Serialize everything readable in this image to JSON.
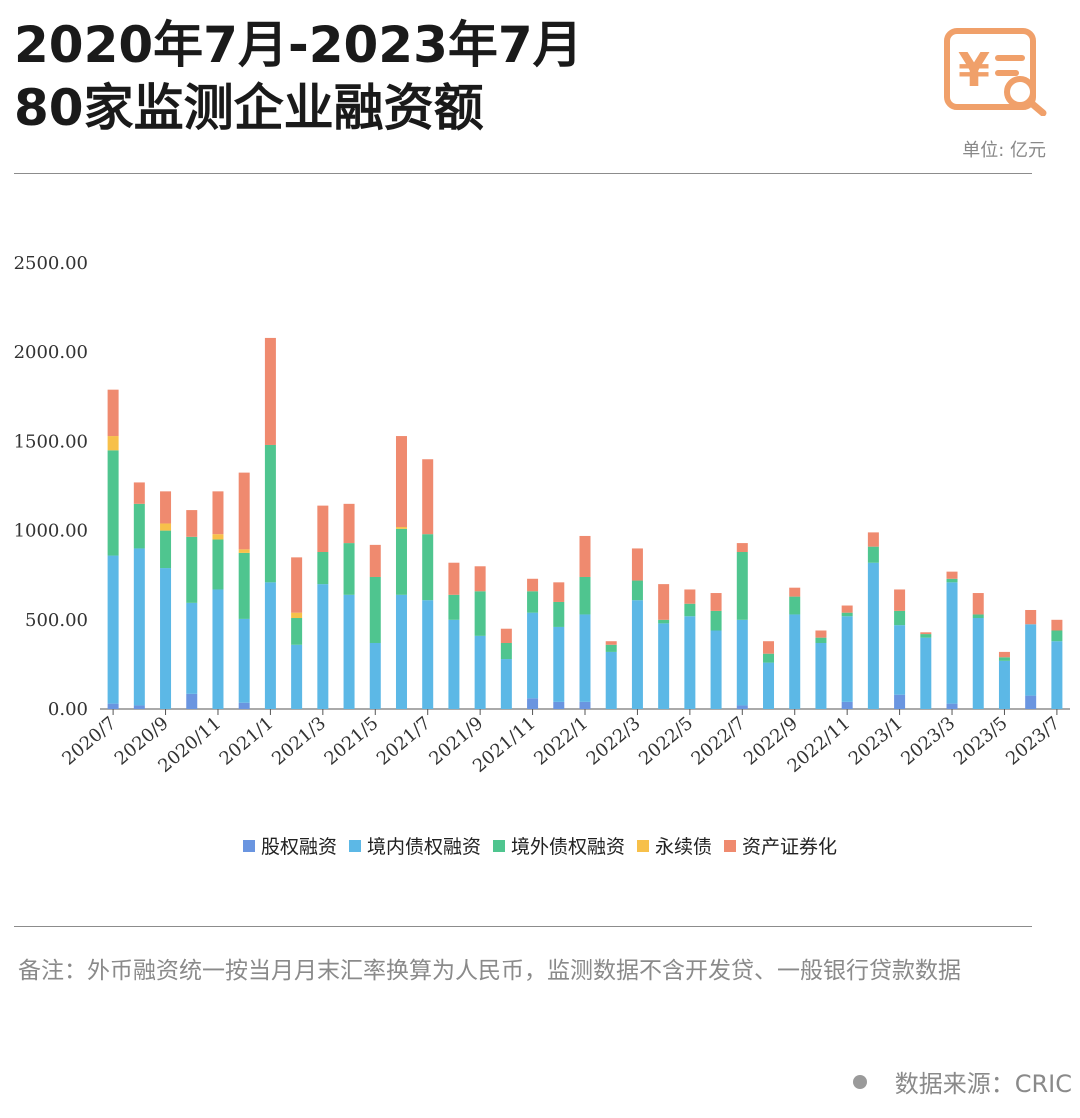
{
  "header": {
    "title_line1": "2020年7月-2023年7月",
    "title_line2": "80家监测企业融资额",
    "unit": "单位: 亿元"
  },
  "colors": {
    "equity": "#6a95e0",
    "domestic_bond": "#5cb8e6",
    "overseas_bond": "#4fc58f",
    "perpetual_bond": "#f7c04a",
    "abs": "#ef8a6f",
    "logo": "#f0a06a"
  },
  "icons": [
    "yuan-invoice-search-logo-icon"
  ],
  "chart_data": {
    "type": "bar",
    "stacked": true,
    "categories": [
      "2020/7",
      "2020/8",
      "2020/9",
      "2020/10",
      "2020/11",
      "2020/12",
      "2021/1",
      "2021/2",
      "2021/3",
      "2021/4",
      "2021/5",
      "2021/6",
      "2021/7",
      "2021/8",
      "2021/9",
      "2021/10",
      "2021/11",
      "2021/12",
      "2022/1",
      "2022/2",
      "2022/3",
      "2022/4",
      "2022/5",
      "2022/6",
      "2022/7",
      "2022/8",
      "2022/9",
      "2022/10",
      "2022/11",
      "2022/12",
      "2023/1",
      "2023/2",
      "2023/3",
      "2023/4",
      "2023/5",
      "2023/6",
      "2023/7"
    ],
    "x_tick_labels": [
      "2020/7",
      "",
      "2020/9",
      "",
      "2020/11",
      "",
      "2021/1",
      "",
      "2021/3",
      "",
      "2021/5",
      "",
      "2021/7",
      "",
      "2021/9",
      "",
      "2021/11",
      "",
      "2022/1",
      "",
      "2022/3",
      "",
      "2022/5",
      "",
      "2022/7",
      "",
      "2022/9",
      "",
      "2022/11",
      "",
      "2023/1",
      "",
      "2023/3",
      "",
      "2023/5",
      "",
      "2023/7"
    ],
    "ylim": [
      0,
      2500
    ],
    "yticks": [
      "0.00",
      "500.00",
      "1000.00",
      "1500.00",
      "2000.00",
      "2500.00"
    ],
    "grid": false,
    "legend_position": "bottom",
    "series": [
      {
        "name": "股权融资",
        "color": "#6a95e0",
        "values": [
          30,
          20,
          0,
          85,
          0,
          35,
          0,
          0,
          0,
          0,
          0,
          0,
          0,
          0,
          0,
          0,
          60,
          40,
          40,
          0,
          0,
          0,
          0,
          0,
          20,
          0,
          0,
          0,
          40,
          0,
          80,
          0,
          30,
          0,
          0,
          75,
          0
        ]
      },
      {
        "name": "境内债权融资",
        "color": "#5cb8e6",
        "values": [
          830,
          880,
          790,
          510,
          670,
          470,
          710,
          360,
          700,
          640,
          370,
          640,
          610,
          500,
          410,
          280,
          480,
          420,
          490,
          320,
          610,
          480,
          520,
          440,
          480,
          260,
          530,
          370,
          480,
          820,
          390,
          400,
          680,
          510,
          270,
          400,
          380
        ]
      },
      {
        "name": "境外债权融资",
        "color": "#4fc58f",
        "values": [
          590,
          250,
          210,
          370,
          280,
          370,
          770,
          150,
          180,
          290,
          370,
          370,
          370,
          140,
          250,
          90,
          120,
          140,
          210,
          40,
          110,
          20,
          70,
          110,
          380,
          50,
          100,
          30,
          20,
          90,
          80,
          20,
          20,
          20,
          20,
          0,
          60
        ]
      },
      {
        "name": "永续债",
        "color": "#f7c04a",
        "values": [
          80,
          0,
          40,
          0,
          30,
          20,
          0,
          30,
          0,
          0,
          0,
          10,
          0,
          0,
          0,
          0,
          0,
          0,
          0,
          0,
          0,
          0,
          0,
          0,
          0,
          0,
          0,
          0,
          0,
          0,
          0,
          0,
          0,
          0,
          0,
          0,
          0
        ]
      },
      {
        "name": "资产证券化",
        "color": "#ef8a6f",
        "values": [
          260,
          120,
          180,
          150,
          240,
          430,
          600,
          310,
          260,
          220,
          180,
          510,
          420,
          180,
          140,
          80,
          70,
          110,
          230,
          20,
          180,
          200,
          80,
          100,
          50,
          70,
          50,
          40,
          40,
          80,
          120,
          10,
          40,
          120,
          30,
          80,
          60
        ]
      }
    ]
  },
  "footer": {
    "note": "备注：外币融资统一按当月月末汇率换算为人民币，监测数据不含开发贷、一般银行贷款数据",
    "source": "数据来源：CRIC"
  }
}
